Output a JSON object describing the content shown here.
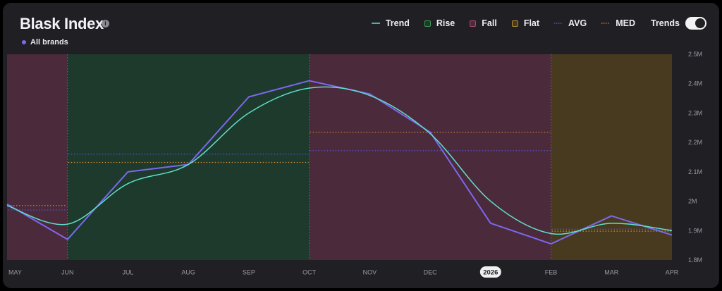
{
  "header": {
    "title": "Blask Index",
    "info_icon": "info-icon",
    "brand_label": "All brands",
    "brand_color": "#7b68ee"
  },
  "legend": {
    "items": [
      {
        "key": "trend",
        "label": "Trend",
        "color": "#5fe0c8",
        "style": "line"
      },
      {
        "key": "rise",
        "label": "Rise",
        "color": "#2f7a3f",
        "style": "box"
      },
      {
        "key": "fall",
        "label": "Fall",
        "color": "#8a3452",
        "style": "box"
      },
      {
        "key": "flat",
        "label": "Flat",
        "color": "#8a6a1e",
        "style": "box"
      },
      {
        "key": "avg",
        "label": "AVG",
        "color": "#4a4ad8",
        "style": "dotted"
      },
      {
        "key": "med",
        "label": "MED",
        "color": "#d68a32",
        "style": "dotted"
      }
    ],
    "toggle_label": "Trends",
    "toggle_on": true
  },
  "chart_data": {
    "type": "line",
    "x_labels": [
      "MAY",
      "JUN",
      "JUL",
      "AUG",
      "SEP",
      "OCT",
      "NOV",
      "DEC",
      "2026",
      "FEB",
      "MAR",
      "APR"
    ],
    "highlighted_x_label": "2026",
    "y_ticks": [
      1800000,
      1900000,
      2000000,
      2100000,
      2200000,
      2300000,
      2400000,
      2500000
    ],
    "y_tick_labels": [
      "1.8M",
      "1.9M",
      "2M",
      "2.1M",
      "2.2M",
      "2.3M",
      "2.4M",
      "2.5M"
    ],
    "ylim": [
      1800000,
      2500000
    ],
    "series": [
      {
        "name": "All brands",
        "color": "#7b68ee",
        "values": [
          1990000,
          1870000,
          2100000,
          2125000,
          2355000,
          2410000,
          2365000,
          2235000,
          1925000,
          1855000,
          1950000,
          1885000
        ]
      }
    ],
    "trend": {
      "color": "#5fe0c8",
      "values": [
        1985000,
        1922000,
        2060000,
        2125000,
        2300000,
        2385000,
        2360000,
        2230000,
        2000000,
        1890000,
        1925000,
        1900000
      ]
    },
    "segments": [
      {
        "type": "fall",
        "start": 0,
        "end": 1,
        "avg": 1970000,
        "med": 1985000,
        "color": "#4b2a3b"
      },
      {
        "type": "rise",
        "start": 1,
        "end": 5,
        "avg": 2160000,
        "med": 2132000,
        "color": "#1d3a2c"
      },
      {
        "type": "fall",
        "start": 5,
        "end": 9,
        "avg": 2172000,
        "med": 2235000,
        "color": "#4b2a3b"
      },
      {
        "type": "flat",
        "start": 9,
        "end": 11,
        "avg": 1905000,
        "med": 1898000,
        "color": "#473a1e"
      }
    ],
    "avg_color": "#5a5adf",
    "med_color": "#d68a32"
  }
}
